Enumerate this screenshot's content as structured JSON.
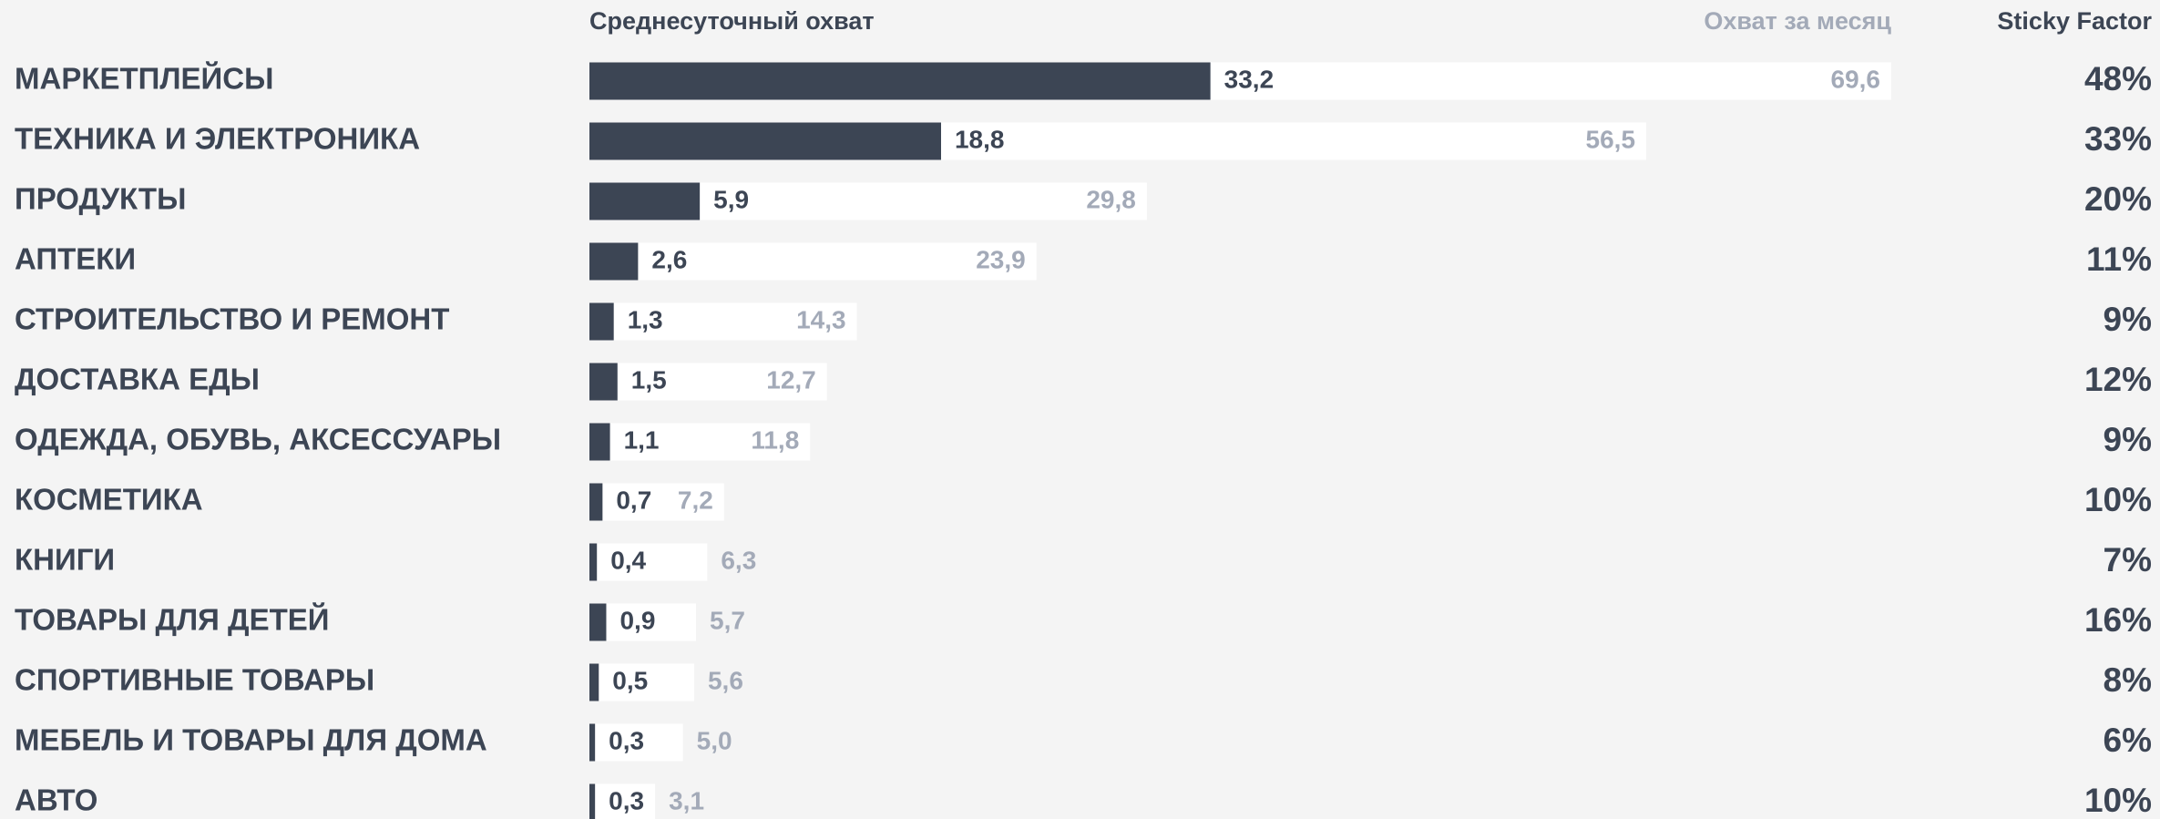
{
  "chart_data": {
    "type": "bar",
    "categories": [
      "МАРКЕТПЛЕЙСЫ",
      "ТЕХНИКА И ЭЛЕКТРОНИКА",
      "ПРОДУКТЫ",
      "АПТЕКИ",
      "СТРОИТЕЛЬСТВО И РЕМОНТ",
      "ДОСТАВКА ЕДЫ",
      "ОДЕЖДА, ОБУВЬ, АКСЕССУАРЫ",
      "КОСМЕТИКА",
      "КНИГИ",
      "ТОВАРЫ ДЛЯ ДЕТЕЙ",
      "СПОРТИВНЫЕ ТОВАРЫ",
      "МЕБЕЛЬ И ТОВАРЫ ДЛЯ ДОМА",
      "АВТО"
    ],
    "series": [
      {
        "name": "Среднесуточный охват",
        "color": "#3c4554",
        "values": [
          33.2,
          18.8,
          5.9,
          2.6,
          1.3,
          1.5,
          1.1,
          0.7,
          0.4,
          0.9,
          0.5,
          0.3,
          0.3
        ],
        "value_labels": [
          "33,2",
          "18,8",
          "5,9",
          "2,6",
          "1,3",
          "1,5",
          "1,1",
          "0,7",
          "0,4",
          "0,9",
          "0,5",
          "0,3",
          "0,3"
        ]
      },
      {
        "name": "Охват за месяц",
        "color": "#ffffff",
        "values": [
          69.6,
          56.5,
          29.8,
          23.9,
          14.3,
          12.7,
          11.8,
          7.2,
          6.3,
          5.7,
          5.6,
          5.0,
          3.1
        ],
        "value_labels": [
          "69,6",
          "56,5",
          "29,8",
          "23,9",
          "14,3",
          "12,7",
          "11,8",
          "7,2",
          "6,3",
          "5,7",
          "5,6",
          "5,0",
          "3,1"
        ]
      },
      {
        "name": "Sticky Factor",
        "values": [
          48,
          33,
          20,
          11,
          9,
          12,
          9,
          10,
          7,
          16,
          8,
          6,
          10
        ],
        "value_labels": [
          "48%",
          "33%",
          "20%",
          "11%",
          "9%",
          "12%",
          "9%",
          "10%",
          "7%",
          "16%",
          "8%",
          "6%",
          "10%"
        ]
      }
    ]
  }
}
